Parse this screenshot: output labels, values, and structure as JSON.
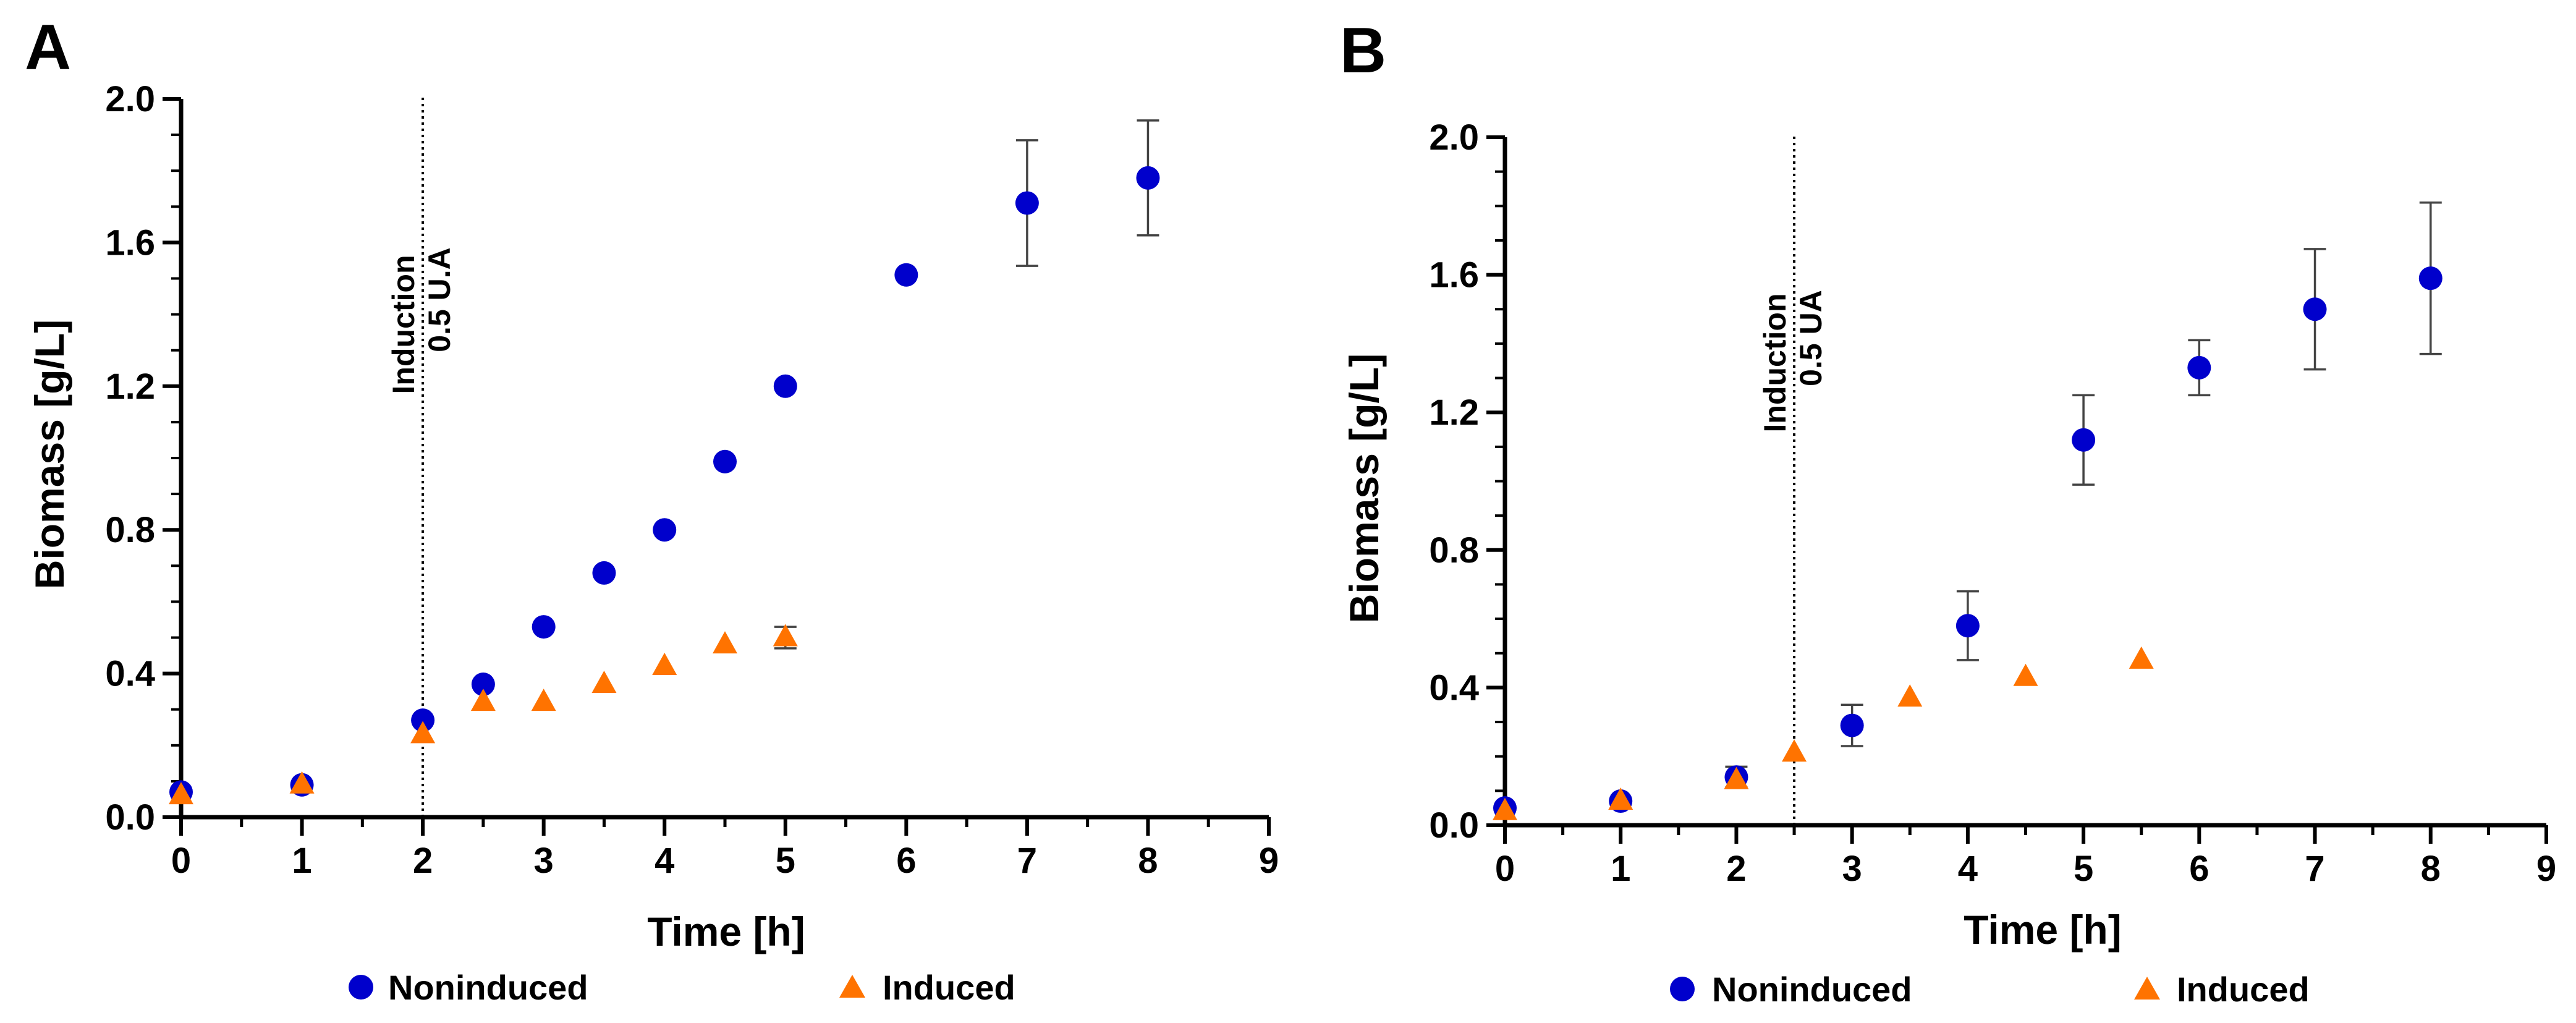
{
  "legend": {
    "noninduced_label": "Noninduced",
    "induced_label": "Induced"
  },
  "colors": {
    "noninduced": "#0000cc",
    "induced": "#ff7300",
    "axis": "#000000",
    "errorbar": "#444444"
  },
  "chart_data": [
    {
      "type": "scatter",
      "panel_label": "A",
      "xlabel": "Time [h]",
      "ylabel": "Biomass [g/L]",
      "xlim": [
        0,
        9
      ],
      "ylim": [
        0,
        2.0
      ],
      "x_ticks": [
        "0",
        "1",
        "2",
        "3",
        "4",
        "5",
        "6",
        "7",
        "8",
        "9"
      ],
      "y_ticks": [
        "0.0",
        "0.4",
        "0.8",
        "1.2",
        "1.6",
        "2.0"
      ],
      "induction": {
        "x": 2,
        "line1": "Induction",
        "line2": "0.5 U.A"
      },
      "legend_position": "bottom",
      "series": [
        {
          "name": "Noninduced",
          "marker": "circle",
          "points": [
            {
              "x": 0,
              "y": 0.07
            },
            {
              "x": 1,
              "y": 0.09
            },
            {
              "x": 2,
              "y": 0.27
            },
            {
              "x": 2.5,
              "y": 0.37
            },
            {
              "x": 3,
              "y": 0.53
            },
            {
              "x": 3.5,
              "y": 0.68
            },
            {
              "x": 4,
              "y": 0.8
            },
            {
              "x": 4.5,
              "y": 0.99
            },
            {
              "x": 5,
              "y": 1.2
            },
            {
              "x": 6,
              "y": 1.51
            },
            {
              "x": 7,
              "y": 1.71,
              "err": 0.175
            },
            {
              "x": 8,
              "y": 1.78,
              "err": 0.16
            }
          ]
        },
        {
          "name": "Induced",
          "marker": "triangle",
          "points": [
            {
              "x": 0,
              "y": 0.06
            },
            {
              "x": 1,
              "y": 0.09
            },
            {
              "x": 2,
              "y": 0.23
            },
            {
              "x": 2.5,
              "y": 0.32
            },
            {
              "x": 3,
              "y": 0.32
            },
            {
              "x": 3.5,
              "y": 0.37
            },
            {
              "x": 4,
              "y": 0.42
            },
            {
              "x": 4.5,
              "y": 0.48
            },
            {
              "x": 5,
              "y": 0.5,
              "err": 0.03
            }
          ]
        }
      ]
    },
    {
      "type": "scatter",
      "panel_label": "B",
      "xlabel": "Time [h]",
      "ylabel": "Biomass [g/L]",
      "xlim": [
        0,
        9
      ],
      "ylim": [
        0,
        2.0
      ],
      "x_ticks": [
        "0",
        "1",
        "2",
        "3",
        "4",
        "5",
        "6",
        "7",
        "8",
        "9"
      ],
      "y_ticks": [
        "0.0",
        "0.4",
        "0.8",
        "1.2",
        "1.6",
        "2.0"
      ],
      "induction": {
        "x": 2.5,
        "line1": "Induction",
        "line2": "0.5 UA"
      },
      "legend_position": "bottom",
      "series": [
        {
          "name": "Noninduced",
          "marker": "circle",
          "points": [
            {
              "x": 0,
              "y": 0.05
            },
            {
              "x": 1,
              "y": 0.07
            },
            {
              "x": 2,
              "y": 0.14,
              "err": 0.03
            },
            {
              "x": 3,
              "y": 0.29,
              "err": 0.06
            },
            {
              "x": 4,
              "y": 0.58,
              "err": 0.1
            },
            {
              "x": 5,
              "y": 1.12,
              "err": 0.13
            },
            {
              "x": 6,
              "y": 1.33,
              "err": 0.08
            },
            {
              "x": 7,
              "y": 1.5,
              "err": 0.175
            },
            {
              "x": 8,
              "y": 1.59,
              "err": 0.22
            }
          ]
        },
        {
          "name": "Induced",
          "marker": "triangle",
          "points": [
            {
              "x": 0,
              "y": 0.04
            },
            {
              "x": 1,
              "y": 0.07
            },
            {
              "x": 2,
              "y": 0.13
            },
            {
              "x": 2.5,
              "y": 0.21
            },
            {
              "x": 3.5,
              "y": 0.37
            },
            {
              "x": 4.5,
              "y": 0.43
            },
            {
              "x": 5.5,
              "y": 0.48
            }
          ]
        }
      ]
    }
  ]
}
